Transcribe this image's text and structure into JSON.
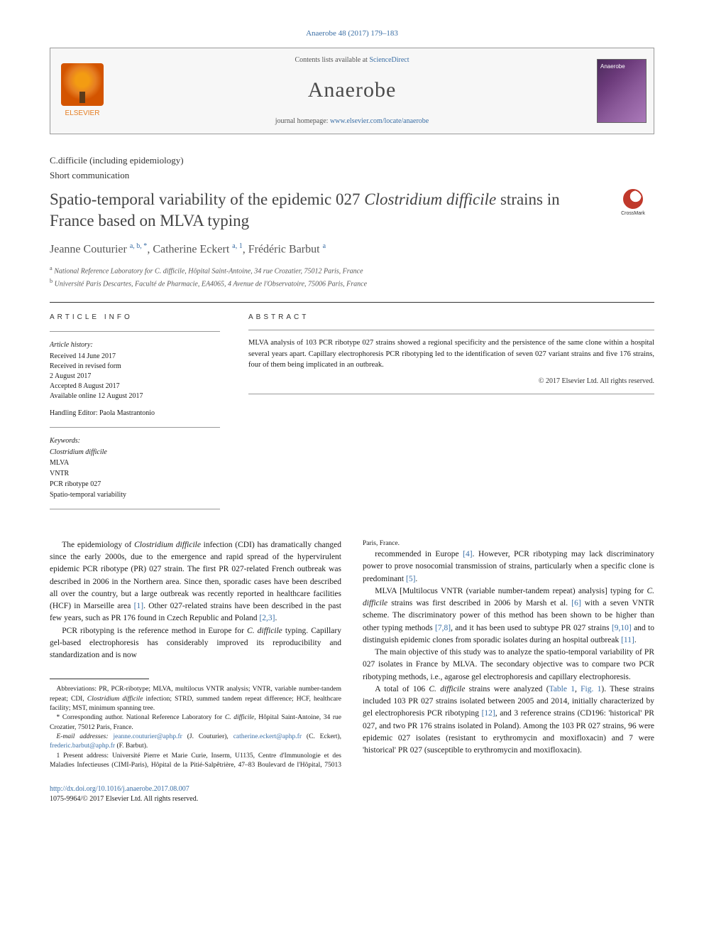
{
  "citation": "Anaerobe 48 (2017) 179–183",
  "header": {
    "contents_prefix": "Contents lists available at ",
    "contents_link": "ScienceDirect",
    "journal": "Anaerobe",
    "homepage_prefix": "journal homepage: ",
    "homepage_link": "www.elsevier.com/locate/anaerobe",
    "elsevier": "ELSEVIER"
  },
  "section_label": "C.difficile (including epidemiology)",
  "article_type": "Short communication",
  "title_part1": "Spatio-temporal variability of the epidemic 027 ",
  "title_italic": "Clostridium difficile",
  "title_part2": " strains in France based on MLVA typing",
  "crossmark": "CrossMark",
  "authors_html": "Jeanne Couturier <sup>a, b, *</sup>, Catherine Eckert <sup>a, 1</sup>, Frédéric Barbut <sup>a</sup>",
  "affiliations": [
    "a National Reference Laboratory for C. difficile, Hôpital Saint-Antoine, 34 rue Crozatier, 75012 Paris, France",
    "b Université Paris Descartes, Faculté de Pharmacie, EA4065, 4 Avenue de l'Observatoire, 75006 Paris, France"
  ],
  "info": {
    "heading": "ARTICLE INFO",
    "history_label": "Article history:",
    "history": [
      "Received 14 June 2017",
      "Received in revised form",
      "2 August 2017",
      "Accepted 8 August 2017",
      "Available online 12 August 2017"
    ],
    "editor_line": "Handling Editor: Paola Mastrantonio",
    "keywords_label": "Keywords:",
    "keywords": [
      "Clostridium difficile",
      "MLVA",
      "VNTR",
      "PCR ribotype 027",
      "Spatio-temporal variability"
    ]
  },
  "abstract": {
    "heading": "ABSTRACT",
    "text": "MLVA analysis of 103 PCR ribotype 027 strains showed a regional specificity and the persistence of the same clone within a hospital several years apart. Capillary electrophoresis PCR ribotyping led to the identification of seven 027 variant strains and five 176 strains, four of them being implicated in an outbreak.",
    "copyright": "© 2017 Elsevier Ltd. All rights reserved."
  },
  "body": {
    "p1": "The epidemiology of Clostridium difficile infection (CDI) has dramatically changed since the early 2000s, due to the emergence and rapid spread of the hypervirulent epidemic PCR ribotype (PR) 027 strain. The first PR 027-related French outbreak was described in 2006 in the Northern area. Since then, sporadic cases have been described all over the country, but a large outbreak was recently reported in healthcare facilities (HCF) in Marseille area [1]. Other 027-related strains have been described in the past few years, such as PR 176 found in Czech Republic and Poland [2,3].",
    "p2": "PCR ribotyping is the reference method in Europe for C. difficile typing. Capillary gel-based electrophoresis has considerably improved its reproducibility and standardization and is now",
    "p3": "recommended in Europe [4]. However, PCR ribotyping may lack discriminatory power to prove nosocomial transmission of strains, particularly when a specific clone is predominant [5].",
    "p4": "MLVA [Multilocus VNTR (variable number-tandem repeat) analysis] typing for C. difficile strains was first described in 2006 by Marsh et al. [6] with a seven VNTR scheme. The discriminatory power of this method has been shown to be higher than other typing methods [7,8], and it has been used to subtype PR 027 strains [9,10] and to distinguish epidemic clones from sporadic isolates during an hospital outbreak [11].",
    "p5": "The main objective of this study was to analyze the spatio-temporal variability of PR 027 isolates in France by MLVA. The secondary objective was to compare two PCR ribotyping methods, i.e., agarose gel electrophoresis and capillary electrophoresis.",
    "p6": "A total of 106 C. difficile strains were analyzed (Table 1, Fig. 1). These strains included 103 PR 027 strains isolated between 2005 and 2014, initially characterized by gel electrophoresis PCR ribotyping [12], and 3 reference strains (CD196: 'historical' PR 027, and two PR 176 strains isolated in Poland). Among the 103 PR 027 strains, 96 were epidemic 027 isolates (resistant to erythromycin and moxifloxacin) and 7 were 'historical' PR 027 (susceptible to erythromycin and moxifloxacin)."
  },
  "footnotes": {
    "abbrev": "Abbreviations: PR, PCR-ribotype; MLVA, multilocus VNTR analysis; VNTR, variable number-tandem repeat; CDI, Clostridium difficile infection; STRD, summed tandem repeat difference; HCF, healthcare facility; MST, minimum spanning tree.",
    "corresp": "* Corresponding author. National Reference Laboratory for C. difficile, Hôpital Saint-Antoine, 34 rue Crozatier, 75012 Paris, France.",
    "email_label": "E-mail addresses: ",
    "email1": "jeanne.couturier@aphp.fr",
    "email1_who": " (J. Couturier), ",
    "email2": "catherine.eckert@aphp.fr",
    "email2_who": " (C. Eckert), ",
    "email3": "frederic.barbut@aphp.fr",
    "email3_who": " (F. Barbut).",
    "present": "1 Present address: Université Pierre et Marie Curie, Inserm, U1135, Centre d'Immunologie et des Maladies Infectieuses (CIMI-Paris), Hôpital de la Pitié-Salpêtrière, 47–83 Boulevard de l'Hôpital, 75013 Paris, France."
  },
  "bottom": {
    "doi": "http://dx.doi.org/10.1016/j.anaerobe.2017.08.007",
    "issn": "1075-9964/© 2017 Elsevier Ltd. All rights reserved."
  },
  "colors": {
    "link": "#3a6ea5",
    "elsevier_orange": "#e67e22",
    "text": "#1a1a1a"
  }
}
